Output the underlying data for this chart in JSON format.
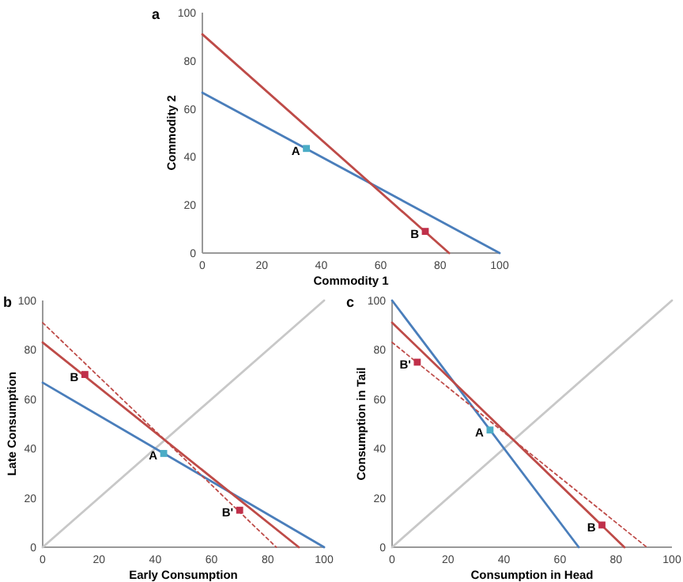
{
  "chart_data": [
    {
      "type": "line",
      "title": "a",
      "xlabel": "Commodity 1",
      "ylabel": "Commodity 2",
      "xlim": [
        0,
        100
      ],
      "ylim": [
        0,
        100
      ],
      "xticks": [
        0,
        20,
        40,
        60,
        80,
        100
      ],
      "yticks": [
        0,
        20,
        40,
        60,
        80,
        100
      ],
      "series": [
        {
          "color": "#4a7ebb",
          "x": [
            0,
            100
          ],
          "values": [
            66.7,
            0
          ],
          "line_style": "solid"
        },
        {
          "color": "#be4b48",
          "x": [
            0,
            83
          ],
          "values": [
            91,
            0
          ],
          "line_style": "solid"
        },
        {
          "type": "scatter",
          "color": "#4bacc6",
          "x": [
            35
          ],
          "values": [
            43.5
          ],
          "marker": "square"
        },
        {
          "type": "scatter",
          "color": "#c0304a",
          "x": [
            75
          ],
          "values": [
            9
          ],
          "marker": "square"
        }
      ],
      "annotations": [
        {
          "text": "A",
          "x": 35,
          "y": 43.5
        },
        {
          "text": "B",
          "x": 75,
          "y": 9
        }
      ]
    },
    {
      "type": "line",
      "title": "b",
      "xlabel": "Early Consumption",
      "ylabel": "Late Consumption",
      "xlim": [
        0,
        100
      ],
      "ylim": [
        0,
        100
      ],
      "xticks": [
        0,
        20,
        40,
        60,
        80,
        100
      ],
      "yticks": [
        0,
        20,
        40,
        60,
        80,
        100
      ],
      "series": [
        {
          "color": "#c8c8c8",
          "x": [
            0,
            100
          ],
          "values": [
            0,
            100
          ],
          "line_style": "solid"
        },
        {
          "color": "#4a7ebb",
          "x": [
            0,
            100
          ],
          "values": [
            66.7,
            0
          ],
          "line_style": "solid"
        },
        {
          "color": "#be4b48",
          "x": [
            0,
            91
          ],
          "values": [
            83,
            0
          ],
          "line_style": "solid"
        },
        {
          "color": "#be4b48",
          "x": [
            0,
            83
          ],
          "values": [
            91,
            0
          ],
          "line_style": "dotted"
        },
        {
          "type": "scatter",
          "color": "#c0304a",
          "x": [
            15
          ],
          "values": [
            70
          ],
          "marker": "square"
        },
        {
          "type": "scatter",
          "color": "#4bacc6",
          "x": [
            43
          ],
          "values": [
            38
          ],
          "marker": "square"
        },
        {
          "type": "scatter",
          "color": "#c0304a",
          "x": [
            70
          ],
          "values": [
            15
          ],
          "marker": "square"
        }
      ],
      "annotations": [
        {
          "text": "B",
          "x": 15,
          "y": 70
        },
        {
          "text": "A",
          "x": 43,
          "y": 38
        },
        {
          "text": "B'",
          "x": 70,
          "y": 15
        }
      ]
    },
    {
      "type": "line",
      "title": "c",
      "xlabel": "Consumption in Head",
      "ylabel": "Consumption in Tail",
      "xlim": [
        0,
        100
      ],
      "ylim": [
        0,
        100
      ],
      "xticks": [
        0,
        20,
        40,
        60,
        80,
        100
      ],
      "yticks": [
        0,
        20,
        40,
        60,
        80,
        100
      ],
      "series": [
        {
          "color": "#c8c8c8",
          "x": [
            0,
            100
          ],
          "values": [
            0,
            100
          ],
          "line_style": "solid"
        },
        {
          "color": "#4a7ebb",
          "x": [
            0,
            66.7
          ],
          "values": [
            100,
            0
          ],
          "line_style": "solid"
        },
        {
          "color": "#be4b48",
          "x": [
            0,
            83
          ],
          "values": [
            91,
            0
          ],
          "line_style": "solid"
        },
        {
          "color": "#be4b48",
          "x": [
            0,
            91
          ],
          "values": [
            83,
            0
          ],
          "line_style": "dotted"
        },
        {
          "type": "scatter",
          "color": "#c0304a",
          "x": [
            9
          ],
          "values": [
            75
          ],
          "marker": "square"
        },
        {
          "type": "scatter",
          "color": "#4bacc6",
          "x": [
            35
          ],
          "values": [
            47.5
          ],
          "marker": "square"
        },
        {
          "type": "scatter",
          "color": "#c0304a",
          "x": [
            75
          ],
          "values": [
            9
          ],
          "marker": "square"
        }
      ],
      "annotations": [
        {
          "text": "B'",
          "x": 9,
          "y": 75
        },
        {
          "text": "A",
          "x": 35,
          "y": 47.5
        },
        {
          "text": "B",
          "x": 75,
          "y": 9
        }
      ]
    }
  ]
}
